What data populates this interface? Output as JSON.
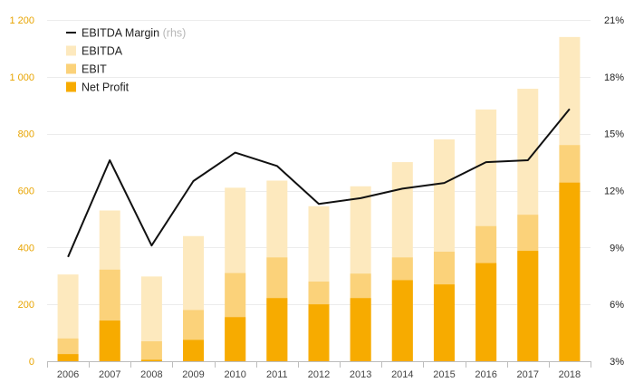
{
  "chart_data": {
    "type": "bar",
    "categories": [
      "2006",
      "2007",
      "2008",
      "2009",
      "2010",
      "2011",
      "2012",
      "2013",
      "2014",
      "2015",
      "2016",
      "2017",
      "2018"
    ],
    "series": [
      {
        "name": "EBITDA",
        "kind": "bar",
        "color": "#FDE9BE",
        "values": [
          305,
          530,
          298,
          440,
          610,
          635,
          545,
          615,
          700,
          780,
          885,
          958,
          1140
        ]
      },
      {
        "name": "EBIT",
        "kind": "bar",
        "color": "#FBD27A",
        "values": [
          80,
          322,
          70,
          180,
          310,
          365,
          280,
          308,
          365,
          385,
          475,
          515,
          760
        ]
      },
      {
        "name": "Net Profit",
        "kind": "bar",
        "color": "#F7AB00",
        "values": [
          25,
          143,
          5,
          75,
          155,
          222,
          200,
          222,
          285,
          270,
          345,
          388,
          628
        ]
      },
      {
        "name": "EBITDA Margin",
        "kind": "line",
        "axis": "right",
        "color": "#111111",
        "values": [
          8.5,
          13.6,
          9.1,
          12.5,
          14.0,
          13.3,
          11.3,
          11.6,
          12.1,
          12.4,
          13.5,
          13.6,
          16.3
        ]
      }
    ],
    "legend": {
      "items": [
        {
          "label": "EBITDA Margin",
          "suffix": "(rhs)",
          "swatch": "line",
          "color": "#111111"
        },
        {
          "label": "EBITDA",
          "suffix": "",
          "swatch": "box",
          "color": "#FDE9BE"
        },
        {
          "label": "EBIT",
          "suffix": "",
          "swatch": "box",
          "color": "#FBD27A"
        },
        {
          "label": "Net Profit",
          "suffix": "",
          "swatch": "box",
          "color": "#F7AB00"
        }
      ],
      "placement": "top-left"
    },
    "left_axis": {
      "ylim": [
        0,
        1200
      ],
      "ticks": [
        0,
        200,
        400,
        600,
        800,
        1000,
        1200
      ],
      "tick_labels": [
        "0",
        "200",
        "400",
        "600",
        "800",
        "1 000",
        "1 200"
      ],
      "color": "#E8A400"
    },
    "right_axis": {
      "ylim": [
        3,
        21
      ],
      "ticks": [
        3,
        6,
        9,
        12,
        15,
        18,
        21
      ],
      "tick_labels": [
        "3%",
        "6%",
        "9%",
        "12%",
        "15%",
        "18%",
        "21%"
      ],
      "color": "#222222"
    },
    "grid": true,
    "title": "",
    "xlabel": "",
    "ylabel": ""
  }
}
